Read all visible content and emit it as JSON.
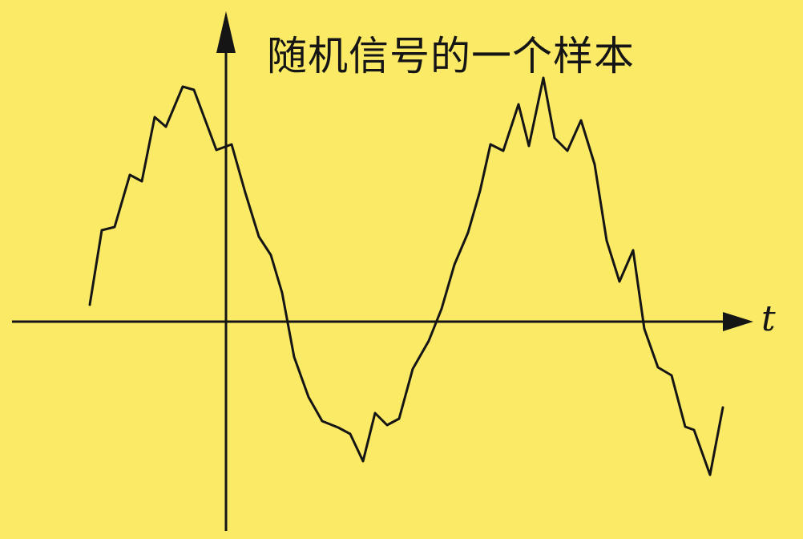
{
  "title": "随机信号的一个样本",
  "axes": {
    "x_label": "t"
  },
  "colors": {
    "background": "#FBEA66",
    "ink": "#151515"
  }
}
